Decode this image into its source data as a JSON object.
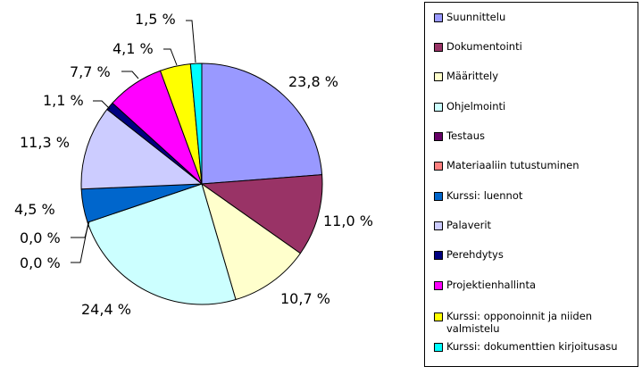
{
  "chart_data": {
    "type": "pie",
    "title": "",
    "legend_position": "right",
    "slices": [
      {
        "name": "Suunnittelu",
        "value": 23.8,
        "label": "23,8 %",
        "color": "#9999ff"
      },
      {
        "name": "Dokumentointi",
        "value": 11.0,
        "label": "11,0 %",
        "color": "#993366"
      },
      {
        "name": "Määrittely",
        "value": 10.7,
        "label": "10,7 %",
        "color": "#ffffcc"
      },
      {
        "name": "Ohjelmointi",
        "value": 24.4,
        "label": "24,4 %",
        "color": "#ccffff"
      },
      {
        "name": "Testaus",
        "value": 0.0,
        "label": "0,0 %",
        "color": "#660066"
      },
      {
        "name": "Materiaaliin tutustuminen",
        "value": 0.0,
        "label": "0,0 %",
        "color": "#ff8080"
      },
      {
        "name": "Kurssi: luennot",
        "value": 4.5,
        "label": "4,5 %",
        "color": "#0066cc"
      },
      {
        "name": "Palaverit",
        "value": 11.3,
        "label": "11,3 %",
        "color": "#ccccff"
      },
      {
        "name": "Perehdytys",
        "value": 1.1,
        "label": "1,1 %",
        "color": "#000080"
      },
      {
        "name": "Projektienhallinta",
        "value": 7.7,
        "label": "7,7 %",
        "color": "#ff00ff"
      },
      {
        "name": "Kurssi: opponoinnit ja niiden valmistelu",
        "value": 4.1,
        "label": "4,1 %",
        "color": "#ffff00"
      },
      {
        "name": "Kurssi: dokumenttien kirjoitusasu",
        "value": 1.5,
        "label": "1,5 %",
        "color": "#00ffff"
      }
    ]
  }
}
